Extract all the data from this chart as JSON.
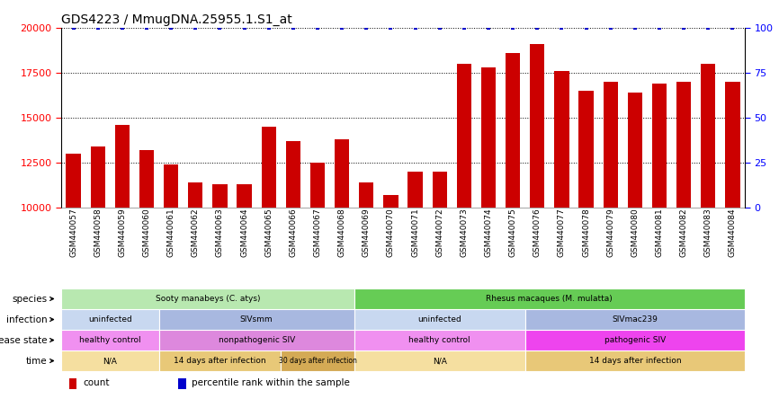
{
  "title": "GDS4223 / MmugDNA.25955.1.S1_at",
  "samples": [
    "GSM440057",
    "GSM440058",
    "GSM440059",
    "GSM440060",
    "GSM440061",
    "GSM440062",
    "GSM440063",
    "GSM440064",
    "GSM440065",
    "GSM440066",
    "GSM440067",
    "GSM440068",
    "GSM440069",
    "GSM440070",
    "GSM440071",
    "GSM440072",
    "GSM440073",
    "GSM440074",
    "GSM440075",
    "GSM440076",
    "GSM440077",
    "GSM440078",
    "GSM440079",
    "GSM440080",
    "GSM440081",
    "GSM440082",
    "GSM440083",
    "GSM440084"
  ],
  "counts": [
    13000,
    13400,
    14600,
    13200,
    12400,
    11400,
    11300,
    11300,
    14500,
    13700,
    12500,
    13800,
    11400,
    10700,
    12000,
    12000,
    18000,
    17800,
    18600,
    19100,
    17600,
    16500,
    17000,
    16400,
    16900,
    17000,
    18000,
    17000
  ],
  "percentile_rank": 100,
  "ylim_left": [
    10000,
    20000
  ],
  "ylim_right": [
    0,
    100
  ],
  "yticks_left": [
    10000,
    12500,
    15000,
    17500,
    20000
  ],
  "yticks_right": [
    0,
    25,
    50,
    75,
    100
  ],
  "bar_color": "#cc0000",
  "dot_color": "#0000cc",
  "bar_width": 0.6,
  "species": [
    {
      "label": "Sooty manabeys (C. atys)",
      "start": 0,
      "end": 12,
      "color": "#b8e8b0"
    },
    {
      "label": "Rhesus macaques (M. mulatta)",
      "start": 12,
      "end": 28,
      "color": "#66cc55"
    }
  ],
  "infection": [
    {
      "label": "uninfected",
      "start": 0,
      "end": 4,
      "color": "#c8d8f0"
    },
    {
      "label": "SIVsmm",
      "start": 4,
      "end": 12,
      "color": "#a8b8e0"
    },
    {
      "label": "uninfected",
      "start": 12,
      "end": 19,
      "color": "#c8d8f0"
    },
    {
      "label": "SIVmac239",
      "start": 19,
      "end": 28,
      "color": "#a8b8e0"
    }
  ],
  "disease_state": [
    {
      "label": "healthy control",
      "start": 0,
      "end": 4,
      "color": "#f090f0"
    },
    {
      "label": "nonpathogenic SIV",
      "start": 4,
      "end": 12,
      "color": "#dd88dd"
    },
    {
      "label": "healthy control",
      "start": 12,
      "end": 19,
      "color": "#f090f0"
    },
    {
      "label": "pathogenic SIV",
      "start": 19,
      "end": 28,
      "color": "#ee44ee"
    }
  ],
  "time": [
    {
      "label": "N/A",
      "start": 0,
      "end": 4,
      "color": "#f5dfa0"
    },
    {
      "label": "14 days after infection",
      "start": 4,
      "end": 9,
      "color": "#e8c878"
    },
    {
      "label": "30 days after infection",
      "start": 9,
      "end": 12,
      "color": "#d4aa55"
    },
    {
      "label": "N/A",
      "start": 12,
      "end": 19,
      "color": "#f5dfa0"
    },
    {
      "label": "14 days after infection",
      "start": 19,
      "end": 28,
      "color": "#e8c878"
    }
  ],
  "bg_color": "#f0f0f0",
  "legend_items": [
    {
      "label": "count",
      "color": "#cc0000"
    },
    {
      "label": "percentile rank within the sample",
      "color": "#0000cc"
    }
  ]
}
